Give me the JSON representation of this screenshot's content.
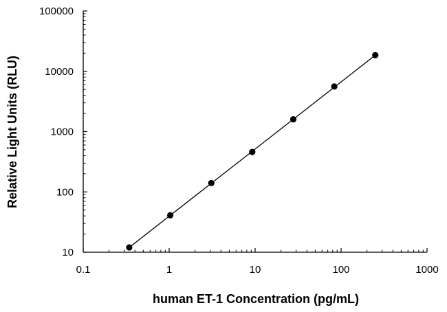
{
  "chart_data": {
    "type": "scatter",
    "title": "",
    "xlabel": "human ET-1 Concentration (pg/mL)",
    "ylabel": "Relative Light Units (RLU)",
    "xscale": "log",
    "yscale": "log",
    "xlim": [
      0.1,
      1000
    ],
    "ylim": [
      10,
      100000
    ],
    "x_ticks": [
      "0.1",
      "1",
      "10",
      "100",
      "1000"
    ],
    "y_ticks": [
      "10",
      "100",
      "1000",
      "10000",
      "100000"
    ],
    "grid": false,
    "legend": "none",
    "colors": {
      "axis": "#000000",
      "series": "#000000"
    },
    "series": [
      {
        "x": [
          0.343,
          1.03,
          3.09,
          9.26,
          27.8,
          83.3,
          250
        ],
        "y": [
          12,
          41,
          140,
          460,
          1600,
          5600,
          18500
        ],
        "fit_line": true
      }
    ]
  }
}
